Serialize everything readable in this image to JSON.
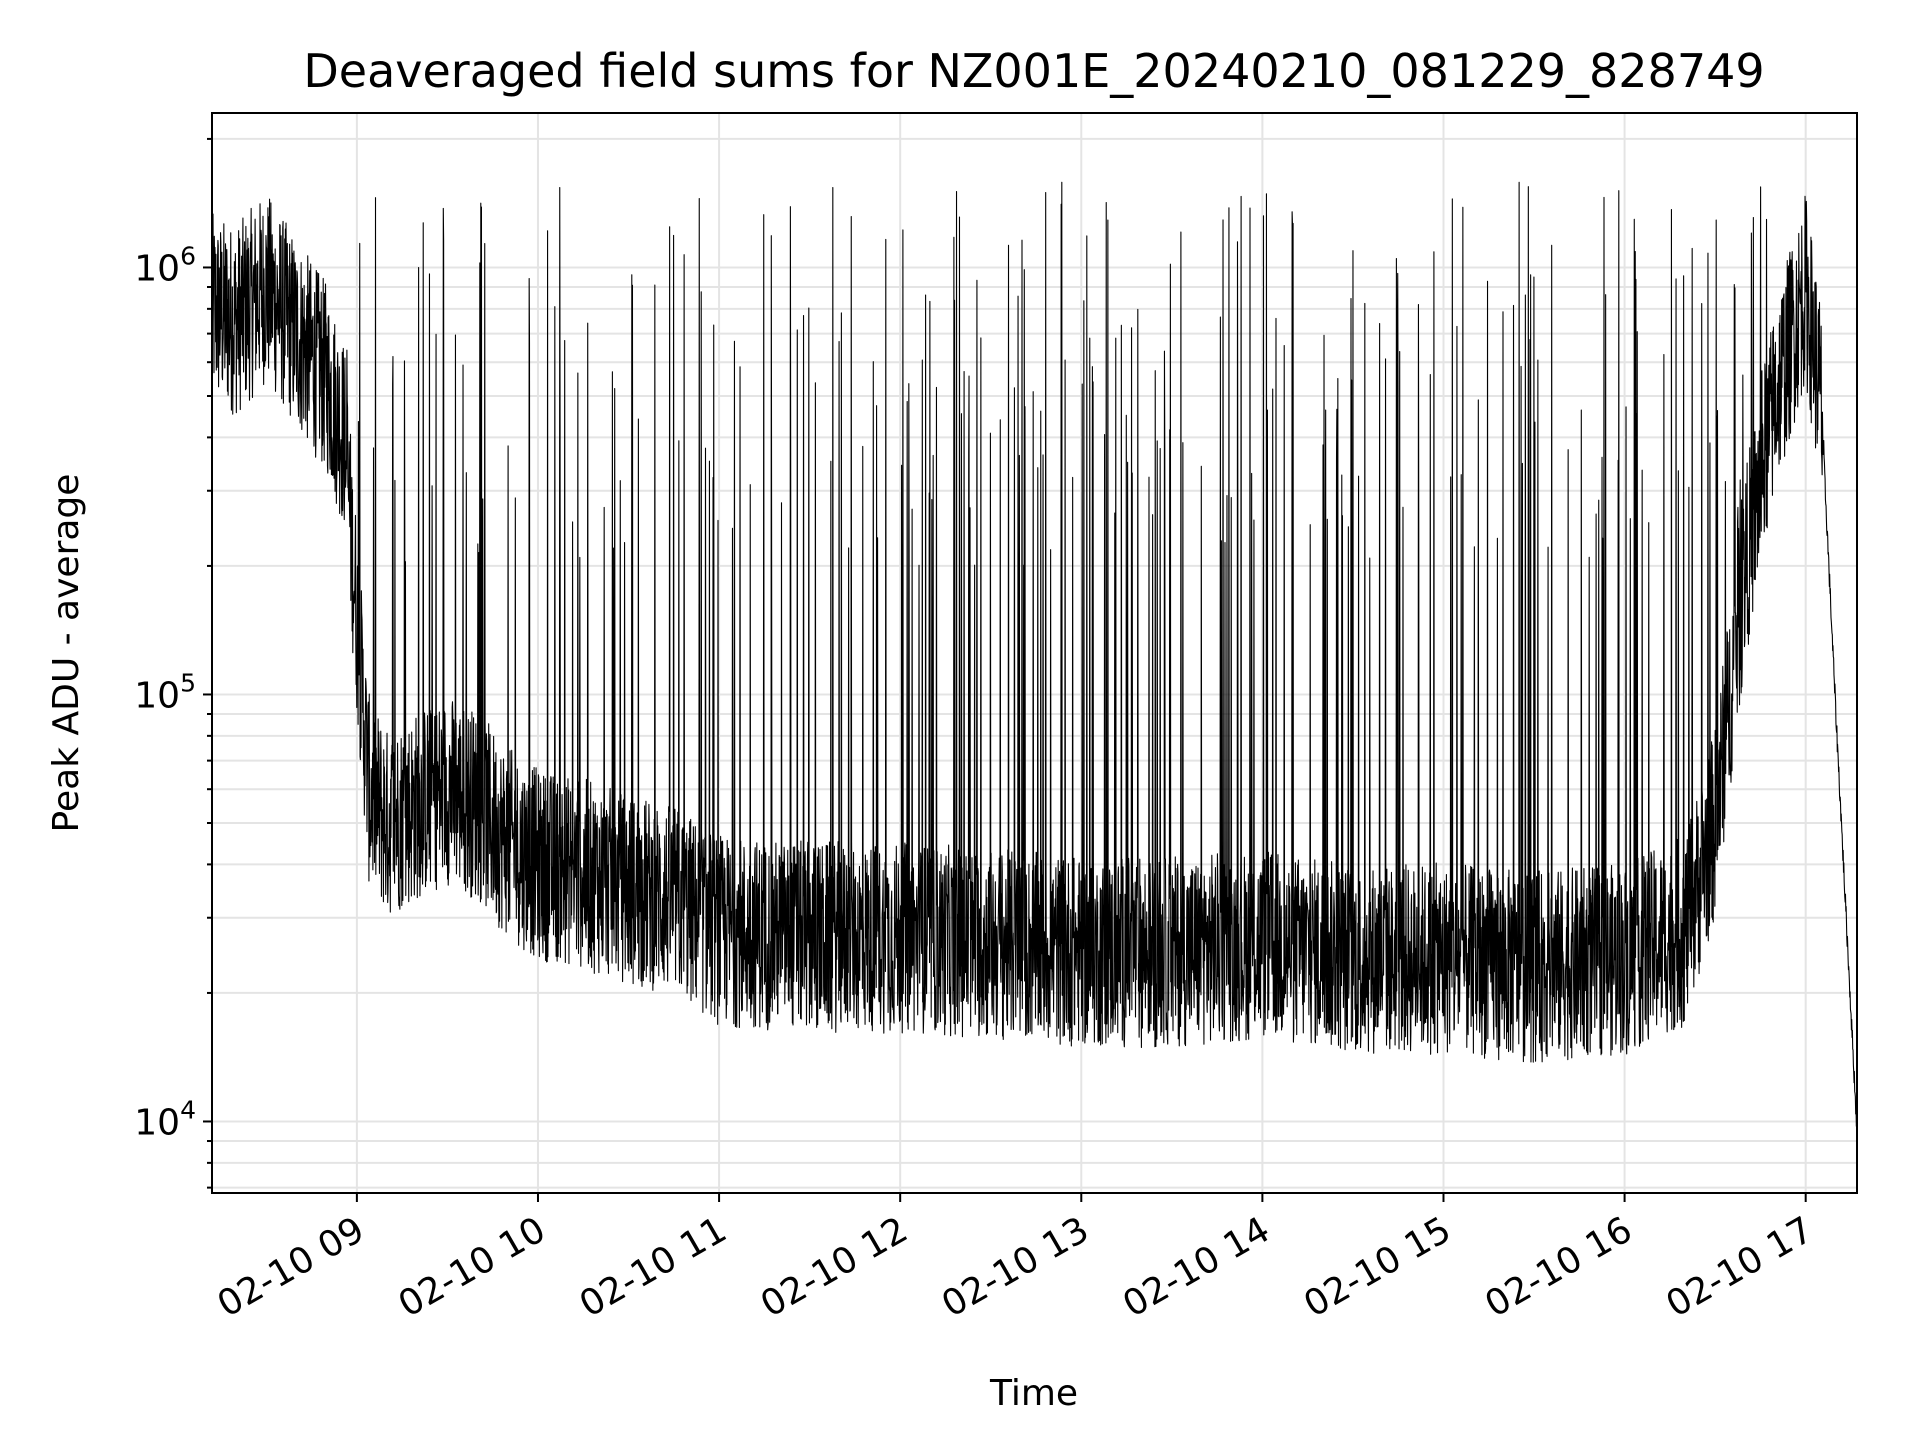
{
  "chart_data": {
    "type": "line",
    "title": "Deaveraged field sums for NZ001E_20240210_081229_828749",
    "xlabel": "Time",
    "ylabel": "Peak ADU - average",
    "yscale": "log",
    "ylim": [
      6800,
      2300000
    ],
    "xlim": [
      "2024-02-10 08:12",
      "2024-02-10 17:17"
    ],
    "grid": true,
    "line_color": "#000000",
    "x_ticks": [
      {
        "label": "02-10 09",
        "time": "2024-02-10 09:00"
      },
      {
        "label": "02-10 10",
        "time": "2024-02-10 10:00"
      },
      {
        "label": "02-10 11",
        "time": "2024-02-10 11:00"
      },
      {
        "label": "02-10 12",
        "time": "2024-02-10 12:00"
      },
      {
        "label": "02-10 13",
        "time": "2024-02-10 13:00"
      },
      {
        "label": "02-10 14",
        "time": "2024-02-10 14:00"
      },
      {
        "label": "02-10 15",
        "time": "2024-02-10 15:00"
      },
      {
        "label": "02-10 16",
        "time": "2024-02-10 16:00"
      },
      {
        "label": "02-10 17",
        "time": "2024-02-10 17:00"
      }
    ],
    "y_ticks": [
      {
        "base": "10",
        "exp": "4",
        "value": 10000
      },
      {
        "base": "10",
        "exp": "5",
        "value": 100000
      },
      {
        "base": "10",
        "exp": "6",
        "value": 1000000
      }
    ],
    "series": [
      {
        "x": [
          "2024-02-10 08:12",
          "2024-02-10 08:20",
          "2024-02-10 08:30",
          "2024-02-10 08:40",
          "2024-02-10 08:50",
          "2024-02-10 08:56",
          "2024-02-10 09:00",
          "2024-02-10 09:04",
          "2024-02-10 09:10",
          "2024-02-10 09:20",
          "2024-02-10 09:30",
          "2024-02-10 09:40",
          "2024-02-10 09:50",
          "2024-02-10 10:00",
          "2024-02-10 10:15",
          "2024-02-10 10:30",
          "2024-02-10 10:45",
          "2024-02-10 11:00",
          "2024-02-10 11:30",
          "2024-02-10 12:00",
          "2024-02-10 12:30",
          "2024-02-10 13:00",
          "2024-02-10 13:30",
          "2024-02-10 14:00",
          "2024-02-10 14:30",
          "2024-02-10 15:00",
          "2024-02-10 15:30",
          "2024-02-10 16:00",
          "2024-02-10 16:20",
          "2024-02-10 16:30",
          "2024-02-10 16:40",
          "2024-02-10 16:50",
          "2024-02-10 17:00",
          "2024-02-10 17:05",
          "2024-02-10 17:10",
          "2024-02-10 17:17"
        ],
        "values": [
          800000,
          750000,
          900000,
          700000,
          550000,
          400000,
          150000,
          60000,
          50000,
          55000,
          60000,
          55000,
          45000,
          40000,
          38000,
          35000,
          33000,
          28000,
          27000,
          27000,
          26000,
          25000,
          25000,
          26000,
          24000,
          24000,
          23000,
          24000,
          28000,
          50000,
          200000,
          500000,
          900000,
          500000,
          90000,
          9500
        ]
      }
    ]
  }
}
